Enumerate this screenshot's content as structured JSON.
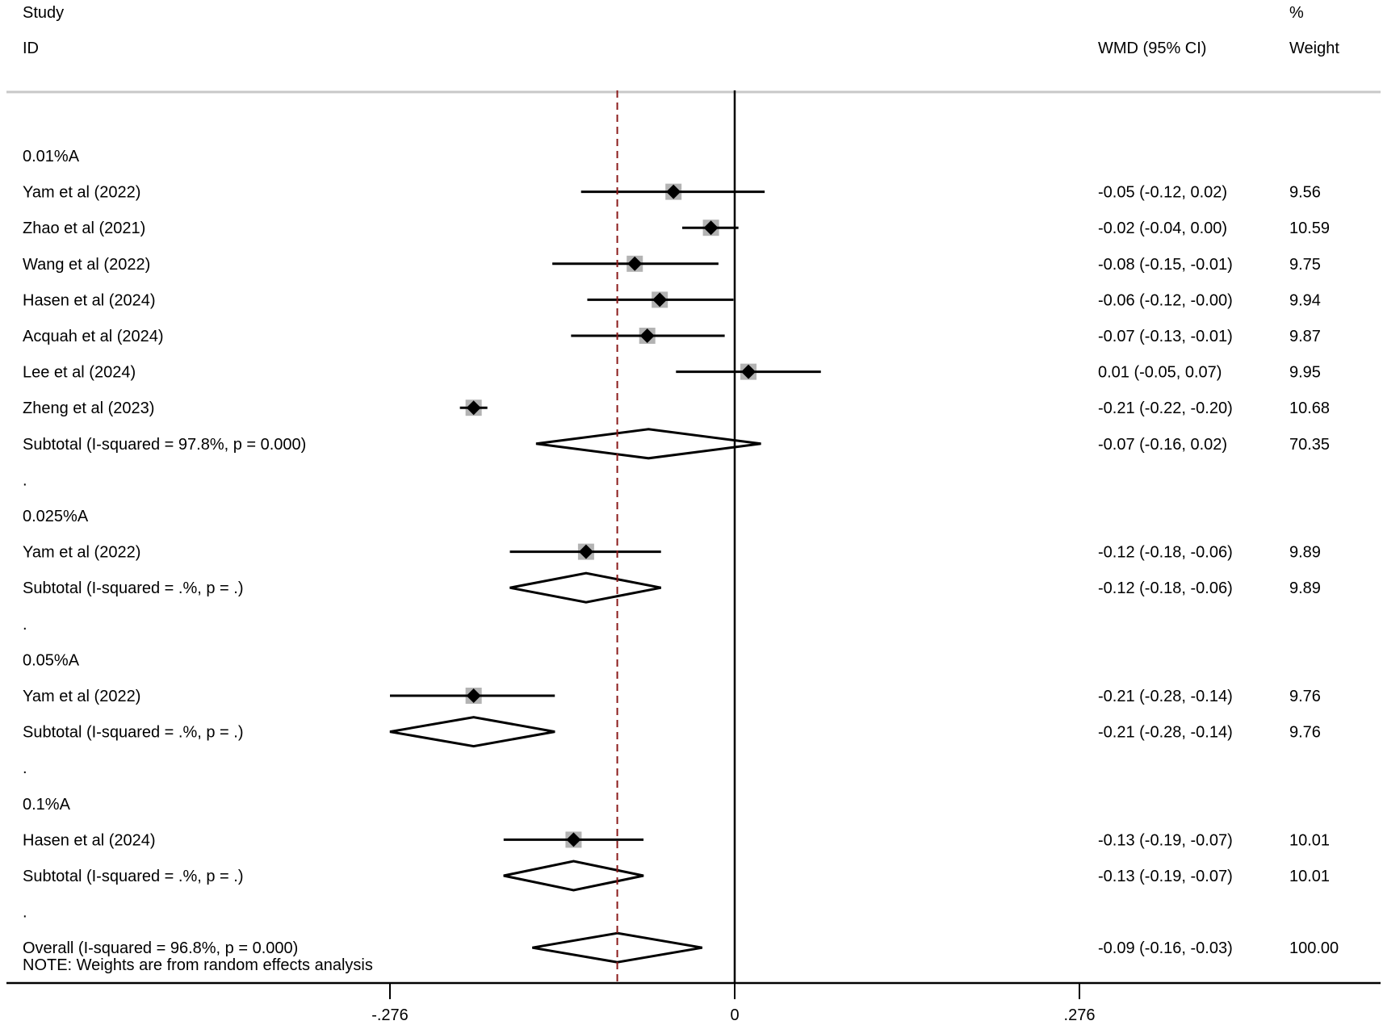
{
  "header": {
    "study_line1": "Study",
    "study_line2": "ID",
    "effect": "WMD (95% CI)",
    "weight_line1": "%",
    "weight_line2": "Weight"
  },
  "colors": {
    "ink": "#000000",
    "weight_box": "#b3b3b3",
    "overall_line": "#8b1a1a",
    "rule": "#c8c8c8"
  },
  "chart_data": {
    "type": "forest",
    "measure": "WMD",
    "xlim": [
      -0.276,
      0.276
    ],
    "ticks": [
      {
        "value": -0.276,
        "label": "-.276"
      },
      {
        "value": 0,
        "label": "0"
      },
      {
        "value": 0.276,
        "label": ".276"
      }
    ],
    "overall_line_value": -0.094,
    "rows": [
      {
        "kind": "group",
        "label": "0.01%A"
      },
      {
        "kind": "study",
        "label": "Yam et al (2022)",
        "est": -0.049,
        "lo": -0.123,
        "hi": 0.024,
        "text": "-0.05 (-0.12, 0.02)",
        "weight": "9.56"
      },
      {
        "kind": "study",
        "label": "Zhao et al (2021)",
        "est": -0.019,
        "lo": -0.042,
        "hi": 0.003,
        "text": "-0.02 (-0.04, 0.00)",
        "weight": "10.59"
      },
      {
        "kind": "study",
        "label": "Wang et al (2022)",
        "est": -0.08,
        "lo": -0.146,
        "hi": -0.013,
        "text": "-0.08 (-0.15, -0.01)",
        "weight": "9.75"
      },
      {
        "kind": "study",
        "label": "Hasen et al (2024)",
        "est": -0.06,
        "lo": -0.118,
        "hi": -0.001,
        "text": "-0.06 (-0.12, -0.00)",
        "weight": "9.94"
      },
      {
        "kind": "study",
        "label": "Acquah et al (2024)",
        "est": -0.07,
        "lo": -0.131,
        "hi": -0.008,
        "text": "-0.07 (-0.13, -0.01)",
        "weight": "9.87"
      },
      {
        "kind": "study",
        "label": "Lee et al (2024)",
        "est": 0.011,
        "lo": -0.047,
        "hi": 0.069,
        "text": "0.01 (-0.05, 0.07)",
        "weight": "9.95"
      },
      {
        "kind": "study",
        "label": "Zheng et al (2023)",
        "est": -0.209,
        "lo": -0.22,
        "hi": -0.198,
        "text": "-0.21 (-0.22, -0.20)",
        "weight": "10.68"
      },
      {
        "kind": "subtotal",
        "label": "Subtotal  (I-squared = 97.8%, p = 0.000)",
        "est": -0.069,
        "lo": -0.159,
        "hi": 0.021,
        "text": "-0.07 (-0.16, 0.02)",
        "weight": "70.35"
      },
      {
        "kind": "dot",
        "label": "."
      },
      {
        "kind": "group",
        "label": "0.025%A"
      },
      {
        "kind": "study",
        "label": "Yam et al (2022)",
        "est": -0.119,
        "lo": -0.18,
        "hi": -0.059,
        "text": "-0.12 (-0.18, -0.06)",
        "weight": "9.89"
      },
      {
        "kind": "subtotal",
        "label": "Subtotal  (I-squared = .%, p = .)",
        "est": -0.119,
        "lo": -0.18,
        "hi": -0.059,
        "text": "-0.12 (-0.18, -0.06)",
        "weight": "9.89"
      },
      {
        "kind": "dot",
        "label": "."
      },
      {
        "kind": "group",
        "label": "0.05%A"
      },
      {
        "kind": "study",
        "label": "Yam et al (2022)",
        "est": -0.209,
        "lo": -0.276,
        "hi": -0.144,
        "text": "-0.21 (-0.28, -0.14)",
        "weight": "9.76"
      },
      {
        "kind": "subtotal",
        "label": "Subtotal  (I-squared = .%, p = .)",
        "est": -0.209,
        "lo": -0.276,
        "hi": -0.144,
        "text": "-0.21 (-0.28, -0.14)",
        "weight": "9.76"
      },
      {
        "kind": "dot",
        "label": "."
      },
      {
        "kind": "group",
        "label": "0.1%A"
      },
      {
        "kind": "study",
        "label": "Hasen et al (2024)",
        "est": -0.129,
        "lo": -0.185,
        "hi": -0.073,
        "text": "-0.13 (-0.19, -0.07)",
        "weight": "10.01"
      },
      {
        "kind": "subtotal",
        "label": "Subtotal  (I-squared = .%, p = .)",
        "est": -0.129,
        "lo": -0.185,
        "hi": -0.073,
        "text": "-0.13 (-0.19, -0.07)",
        "weight": "10.01"
      },
      {
        "kind": "dot",
        "label": "."
      },
      {
        "kind": "overall",
        "label": "Overall  (I-squared = 96.8%, p = 0.000)",
        "est": -0.094,
        "lo": -0.162,
        "hi": -0.026,
        "text": "-0.09 (-0.16, -0.03)",
        "weight": "100.00"
      }
    ],
    "note": "NOTE: Weights are from random effects analysis"
  }
}
